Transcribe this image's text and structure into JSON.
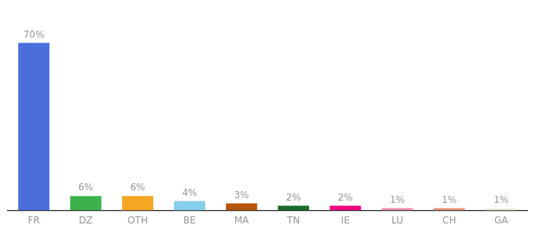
{
  "chart_data": {
    "type": "bar",
    "categories": [
      "FR",
      "DZ",
      "OTH",
      "BE",
      "MA",
      "TN",
      "IE",
      "LU",
      "CH",
      "GA"
    ],
    "values": [
      70,
      6,
      6,
      4,
      3,
      2,
      2,
      1,
      1,
      1
    ],
    "value_labels": [
      "70%",
      "6%",
      "6%",
      "4%",
      "3%",
      "2%",
      "2%",
      "1%",
      "1%",
      "1%"
    ],
    "colors": [
      "#4a6fdc",
      "#3cb34a",
      "#f5a623",
      "#87ceeb",
      "#b5550a",
      "#1a6b2a",
      "#f0047f",
      "#f48fb1",
      "#e8957a",
      "#f5f0dc"
    ],
    "ylim": [
      0,
      80
    ],
    "data_labels": true,
    "tick_labels": "x",
    "grid": false
  }
}
